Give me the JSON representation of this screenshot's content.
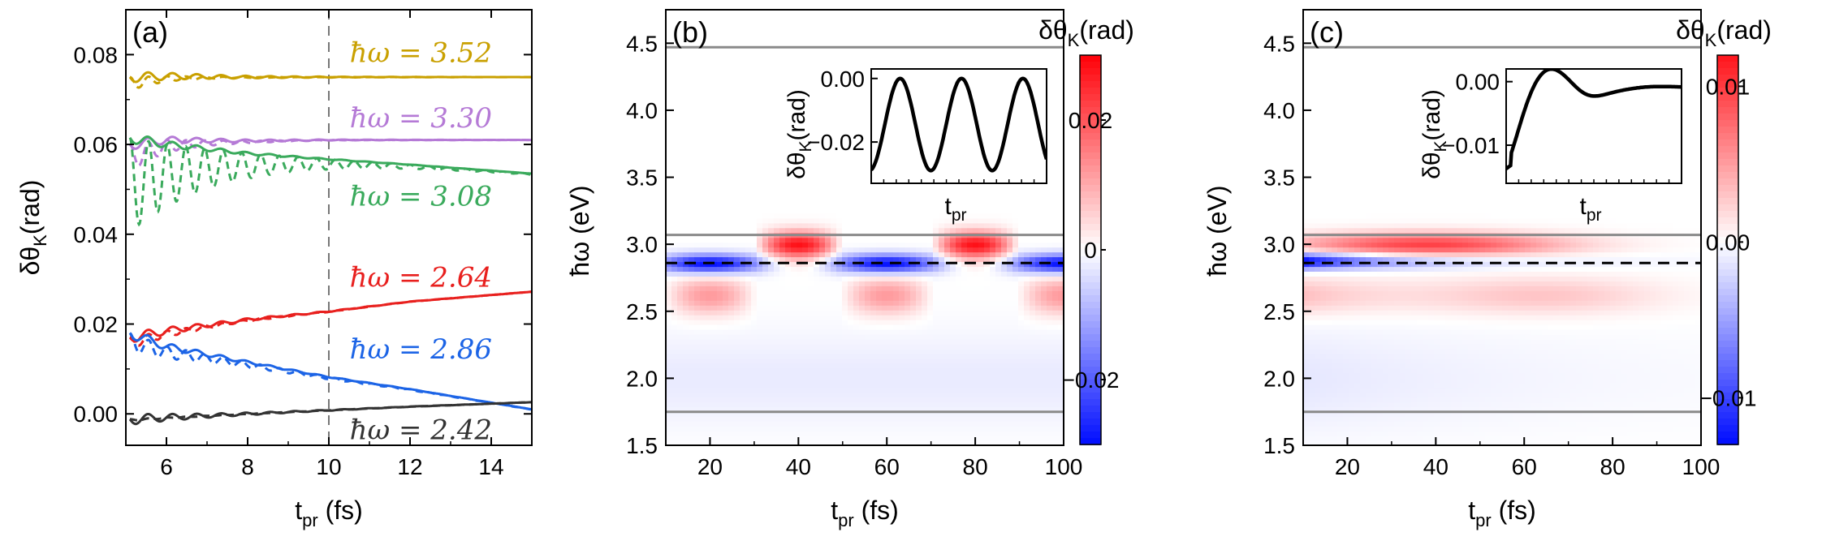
{
  "chart_data": [
    {
      "panel": "a",
      "type": "line",
      "panel_label": "(a)",
      "xlabel": "t",
      "xlabel_sub": "pr",
      "xlabel_unit": "(fs)",
      "ylabel": "δθ",
      "ylabel_sub": "K",
      "ylabel_unit": "(rad)",
      "xlim": [
        5,
        15
      ],
      "ylim": [
        -0.007,
        0.09
      ],
      "xticks": [
        6,
        8,
        10,
        12,
        14
      ],
      "yticks": [
        "0.00",
        "0.02",
        "0.04",
        "0.06",
        "0.08"
      ],
      "vline_x": 10,
      "series": [
        {
          "name": "ħω = 3.52",
          "label": "ħω = 3.52",
          "color": "#c9a000",
          "solid": [
            [
              5.1,
              0.075
            ],
            [
              6,
              0.0752
            ],
            [
              8,
              0.075
            ],
            [
              10,
              0.075
            ],
            [
              12,
              0.075
            ],
            [
              15,
              0.075
            ]
          ],
          "dashed_offset": 0.075,
          "dashed_amp": 0.003,
          "dashed_tau": 1.0
        },
        {
          "name": "ħω = 3.30",
          "label": "ħω = 3.30",
          "color": "#b57ad6",
          "solid": [
            [
              5.1,
              0.06
            ],
            [
              6,
              0.061
            ],
            [
              8,
              0.0608
            ],
            [
              10,
              0.061
            ],
            [
              12,
              0.061
            ],
            [
              15,
              0.061
            ]
          ],
          "dashed_offset": 0.061,
          "dashed_amp": 0.006,
          "dashed_tau": 1.2
        },
        {
          "name": "ħω = 3.08",
          "label": "ħω = 3.08",
          "color": "#3aaa5c",
          "solid": [
            [
              5.1,
              0.0615
            ],
            [
              6,
              0.06
            ],
            [
              8,
              0.058
            ],
            [
              10,
              0.0567
            ],
            [
              12,
              0.0555
            ],
            [
              15,
              0.0535
            ]
          ],
          "dashed_offset": 0.056,
          "dashed_amp": 0.021,
          "dashed_tau": 2.2
        },
        {
          "name": "ħω = 2.64",
          "label": "ħω = 2.64",
          "color": "#e8201e",
          "solid": [
            [
              5.1,
              0.017
            ],
            [
              6,
              0.0185
            ],
            [
              8,
              0.021
            ],
            [
              10,
              0.0228
            ],
            [
              12,
              0.025
            ],
            [
              15,
              0.0272
            ]
          ],
          "dashed_offset": 0.019,
          "dashed_amp": 0.0025,
          "dashed_tau": 1.6
        },
        {
          "name": "ħω = 2.86",
          "label": "ħω = 2.86",
          "color": "#1c64e6",
          "solid": [
            [
              5.1,
              0.018
            ],
            [
              6,
              0.015
            ],
            [
              8,
              0.0115
            ],
            [
              10,
              0.0082
            ],
            [
              12,
              0.0055
            ],
            [
              15,
              0.001
            ]
          ],
          "dashed_offset": 0.013,
          "dashed_amp": 0.004,
          "dashed_tau": 2.4
        },
        {
          "name": "ħω = 2.42",
          "label": "ħω = 2.42",
          "color": "#333333",
          "solid": [
            [
              5.1,
              -0.0012
            ],
            [
              6,
              -0.0008
            ],
            [
              8,
              0.0
            ],
            [
              10,
              0.0008
            ],
            [
              12,
              0.0016
            ],
            [
              15,
              0.0026
            ]
          ],
          "dashed_offset": -0.0008,
          "dashed_amp": 0.0004,
          "dashed_tau": 1.5
        }
      ]
    },
    {
      "panel": "b",
      "type": "heatmap",
      "panel_label": "(b)",
      "xlabel": "t",
      "xlabel_sub": "pr",
      "xlabel_unit": "(fs)",
      "ylabel": "ħω (eV)",
      "xlim": [
        10,
        100
      ],
      "ylim": [
        1.5,
        4.75
      ],
      "xticks": [
        20,
        40,
        60,
        80,
        100
      ],
      "yticks": [
        "1.5",
        "2.0",
        "2.5",
        "3.0",
        "3.5",
        "4.0",
        "4.5"
      ],
      "hlines_gray": [
        4.47,
        3.07,
        1.75
      ],
      "hline_dashed": 2.86,
      "colorbar_title": "δθ",
      "colorbar_sub": "K",
      "colorbar_unit": "(rad)",
      "colorbar_range": [
        -0.03,
        0.03
      ],
      "colorbar_ticks": [
        {
          "v": 0.02,
          "t": "0.02"
        },
        {
          "v": 0,
          "t": "0"
        },
        {
          "v": -0.02,
          "t": "−0.02"
        }
      ],
      "inset": {
        "xlabel": "t",
        "xlabel_sub": "pr",
        "ylabel": "δθ",
        "ylabel_sub": "K",
        "ylabel_unit": "(rad)",
        "yticks": [
          "0.00",
          "−0.02"
        ],
        "ylim": [
          -0.033,
          0.003
        ],
        "curve": "oscillation"
      }
    },
    {
      "panel": "c",
      "type": "heatmap",
      "panel_label": "(c)",
      "xlabel": "t",
      "xlabel_sub": "pr",
      "xlabel_unit": "(fs)",
      "ylabel": "ħω (eV)",
      "xlim": [
        10,
        100
      ],
      "ylim": [
        1.5,
        4.75
      ],
      "xticks": [
        20,
        40,
        60,
        80,
        100
      ],
      "yticks": [
        "1.5",
        "2.0",
        "2.5",
        "3.0",
        "3.5",
        "4.0",
        "4.5"
      ],
      "hlines_gray": [
        4.47,
        3.07,
        1.75
      ],
      "hline_dashed": 2.86,
      "colorbar_title": "δθ",
      "colorbar_sub": "K",
      "colorbar_unit": "(rad)",
      "colorbar_range": [
        -0.013,
        0.012
      ],
      "colorbar_ticks": [
        {
          "v": 0.01,
          "t": "0.01"
        },
        {
          "v": 0,
          "t": "0.00"
        },
        {
          "v": -0.01,
          "t": "−0.01"
        }
      ],
      "inset": {
        "xlabel": "t",
        "xlabel_sub": "pr",
        "ylabel": "δθ",
        "ylabel_sub": "K",
        "ylabel_unit": "(rad)",
        "yticks": [
          "0.00",
          "−0.01"
        ],
        "ylim": [
          -0.016,
          0.002
        ],
        "curve": "damped"
      }
    }
  ]
}
